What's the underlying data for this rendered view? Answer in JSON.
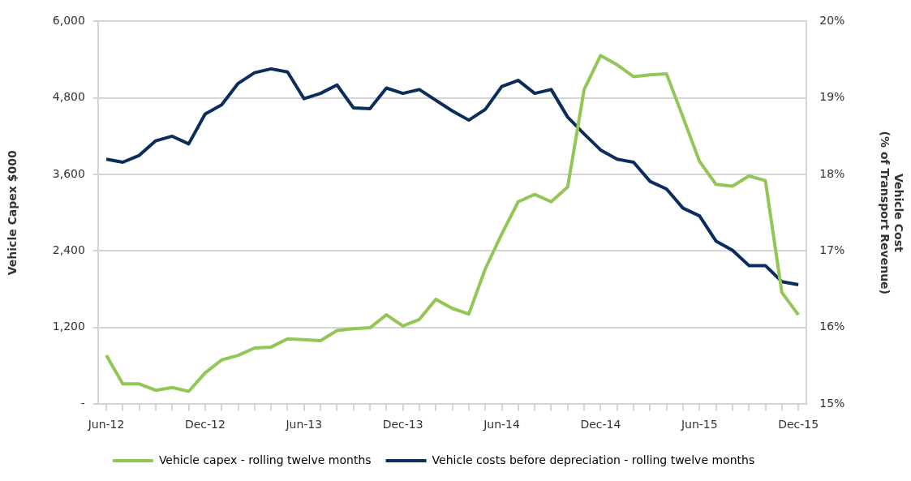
{
  "chart_data": {
    "type": "line",
    "categories": [
      "Jun-12",
      null,
      null,
      null,
      null,
      null,
      "Dec-12",
      null,
      null,
      null,
      null,
      null,
      "Jun-13",
      null,
      null,
      null,
      null,
      null,
      "Dec-13",
      null,
      null,
      null,
      null,
      null,
      "Jun-14",
      null,
      null,
      null,
      null,
      null,
      "Dec-14",
      null,
      null,
      null,
      null,
      null,
      "Jun-15",
      null,
      null,
      null,
      null,
      null,
      "Dec-15"
    ],
    "series": [
      {
        "name": "Vehicle capex - rolling twelve months",
        "color": "#92c755",
        "values": [
          764,
          317,
          317,
          216,
          260,
          200,
          490,
          692,
          764,
          880,
          894,
          1024,
          1010,
          995,
          1154,
          1182,
          1197,
          1400,
          1226,
          1327,
          1644,
          1500,
          1413,
          2120,
          2668,
          3172,
          3288,
          3172,
          3403,
          4932,
          5465,
          5321,
          5134,
          5162,
          5177,
          4500,
          3807,
          3446,
          3417,
          3576,
          3504,
          1750,
          1400
        ]
      },
      {
        "name": "Vehicle costs before depreciation - rolling twelve months",
        "color": "#0a2d5c",
        "axis": "y2",
        "values": [
          18.2,
          18.16,
          18.25,
          18.44,
          18.5,
          18.4,
          18.79,
          18.91,
          19.19,
          19.33,
          19.38,
          19.34,
          18.99,
          19.06,
          19.17,
          18.87,
          18.86,
          19.13,
          19.06,
          19.11,
          18.97,
          18.83,
          18.71,
          18.85,
          19.15,
          19.23,
          19.06,
          19.11,
          18.75,
          18.53,
          18.32,
          18.2,
          18.16,
          17.91,
          17.81,
          17.56,
          17.46,
          17.13,
          17.01,
          16.81,
          16.81,
          16.6,
          16.56
        ]
      }
    ],
    "ylabel": "Vehicle Capex $000",
    "y2label": "Vehicle Cost\n(% of Transport Revenue)",
    "ylim": [
      0,
      6000
    ],
    "yticks": [
      {
        "value": 0,
        "label": "-"
      },
      {
        "value": 1200,
        "label": "1,200"
      },
      {
        "value": 2400,
        "label": "2,400"
      },
      {
        "value": 3600,
        "label": "3,600"
      },
      {
        "value": 4800,
        "label": "4,800"
      },
      {
        "value": 6000,
        "label": "6,000"
      }
    ],
    "y2lim": [
      15,
      20
    ],
    "y2ticks": [
      {
        "value": 15,
        "label": "15%"
      },
      {
        "value": 16,
        "label": "16%"
      },
      {
        "value": 17,
        "label": "17%"
      },
      {
        "value": 18,
        "label": "18%"
      },
      {
        "value": 19,
        "label": "19%"
      },
      {
        "value": 20,
        "label": "20%"
      }
    ],
    "grid": "y",
    "legend": "bottom left",
    "marker": "none",
    "line_style": "solid"
  }
}
